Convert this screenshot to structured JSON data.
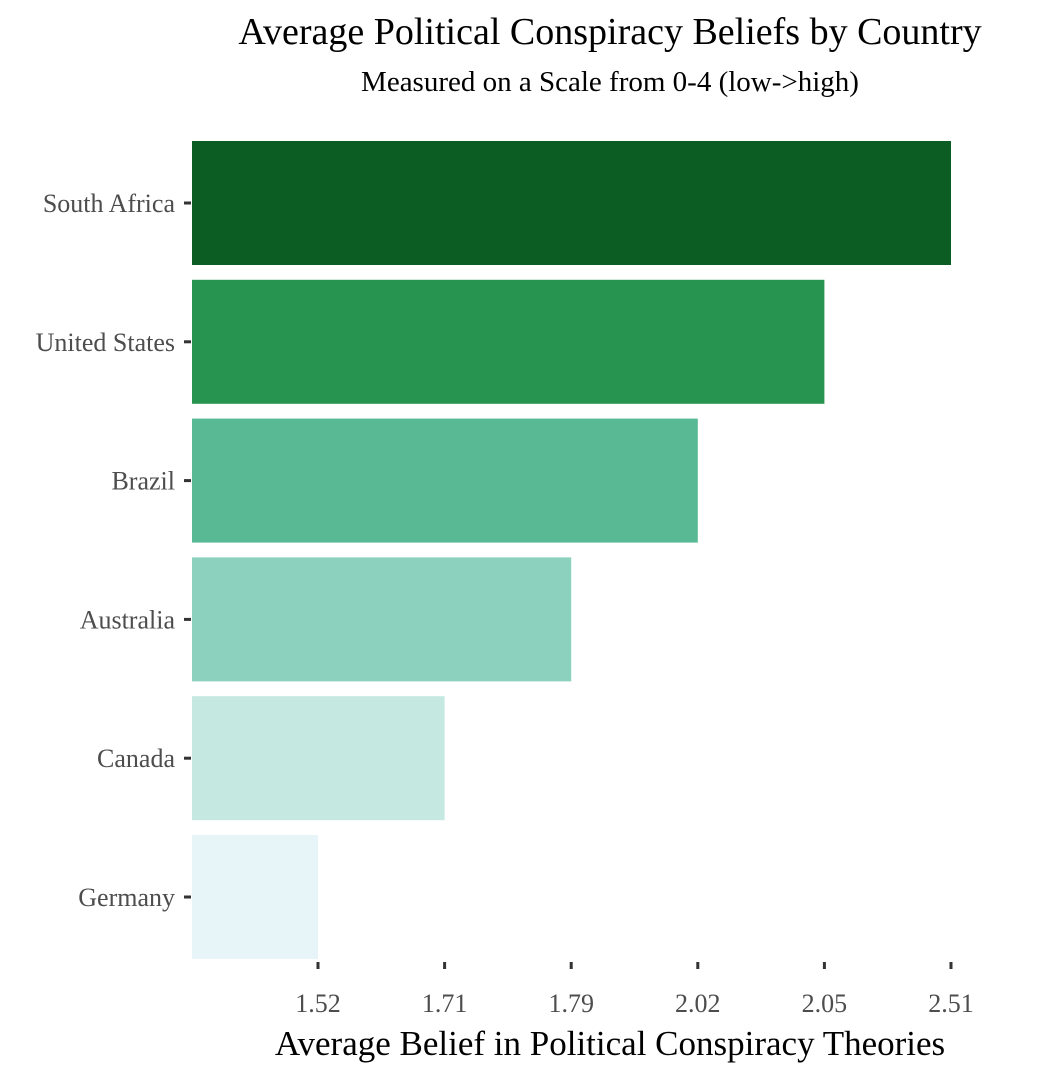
{
  "chart_data": {
    "type": "bar",
    "orientation": "horizontal",
    "title": "Average Political Conspiracy Beliefs by Country",
    "subtitle": "Measured on a Scale from 0-4 (low->high)",
    "xlabel": "Average Belief in Political Conspiracy Theories",
    "ylabel": "",
    "categories": [
      "South Africa",
      "United States",
      "Brazil",
      "Australia",
      "Canada",
      "Germany"
    ],
    "values": [
      2.51,
      2.05,
      2.02,
      1.79,
      1.71,
      1.52
    ],
    "x_tick_labels": [
      "1.52",
      "1.71",
      "1.79",
      "2.02",
      "2.05",
      "2.51"
    ],
    "x_axis_note": "tick labels are placed at equal spacing (one per bar end), not on a linear numeric scale",
    "colors": [
      "#0b5d24",
      "#27954f",
      "#58b994",
      "#8bd1bd",
      "#c5e8e0",
      "#e8f5f8"
    ],
    "grid": false,
    "legend": "none"
  }
}
